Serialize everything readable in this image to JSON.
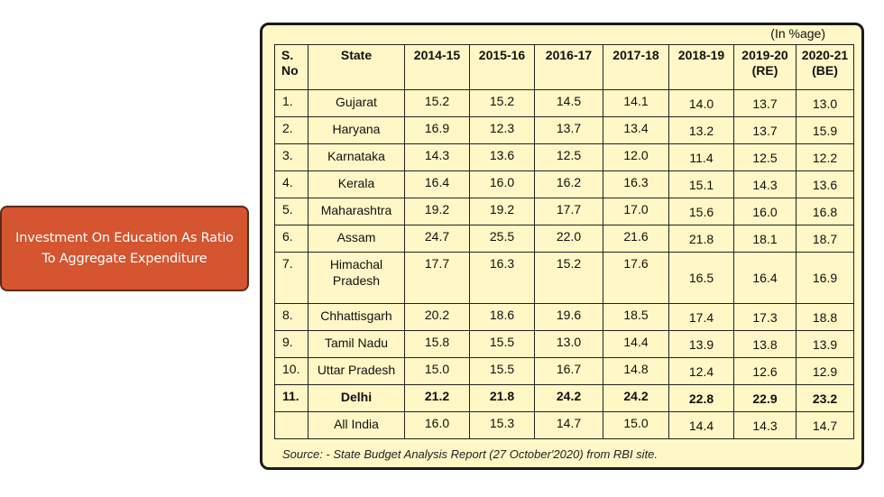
{
  "label": {
    "line1": "Investment On Education As Ratio",
    "line2": "To Aggregate Expenditure"
  },
  "table": {
    "unit_note": "(In %age)",
    "headers": {
      "sno_line1": "S.",
      "sno_line2": "No",
      "state": "State",
      "y1": "2014-15",
      "y2": "2015-16",
      "y3": "2016-17",
      "y4": "2017-18",
      "y5": "2018-19",
      "y6_line1": "2019-20",
      "y6_line2": "(RE)",
      "y7_line1": "2020-21",
      "y7_line2": "(BE)"
    },
    "rows": [
      {
        "sno": "1.",
        "state": "Gujarat",
        "v": [
          "15.2",
          "15.2",
          "14.5",
          "14.1",
          "14.0",
          "13.7",
          "13.0"
        ]
      },
      {
        "sno": "2.",
        "state": "Haryana",
        "v": [
          "16.9",
          "12.3",
          "13.7",
          "13.4",
          "13.2",
          "13.7",
          "15.9"
        ]
      },
      {
        "sno": "3.",
        "state": "Karnataka",
        "v": [
          "14.3",
          "13.6",
          "12.5",
          "12.0",
          "11.4",
          "12.5",
          "12.2"
        ]
      },
      {
        "sno": "4.",
        "state": "Kerala",
        "v": [
          "16.4",
          "16.0",
          "16.2",
          "16.3",
          "15.1",
          "14.3",
          "13.6"
        ]
      },
      {
        "sno": "5.",
        "state": "Maharashtra",
        "v": [
          "19.2",
          "19.2",
          "17.7",
          "17.0",
          "15.6",
          "16.0",
          "16.8"
        ]
      },
      {
        "sno": "6.",
        "state": "Assam",
        "v": [
          "24.7",
          "25.5",
          "22.0",
          "21.6",
          "21.8",
          "18.1",
          "18.7"
        ]
      },
      {
        "sno": "7.",
        "state_line1": "Himachal",
        "state_line2": "Pradesh",
        "v": [
          "17.7",
          "16.3",
          "15.2",
          "17.6",
          "16.5",
          "16.4",
          "16.9"
        ]
      },
      {
        "sno": "8.",
        "state": "Chhattisgarh",
        "v": [
          "20.2",
          "18.6",
          "19.6",
          "18.5",
          "17.4",
          "17.3",
          "18.8"
        ]
      },
      {
        "sno": "9.",
        "state": "Tamil Nadu",
        "v": [
          "15.8",
          "15.5",
          "13.0",
          "14.4",
          "13.9",
          "13.8",
          "13.9"
        ]
      },
      {
        "sno": "10.",
        "state": "Uttar Pradesh",
        "v": [
          "15.0",
          "15.5",
          "16.7",
          "14.8",
          "12.4",
          "12.6",
          "12.9"
        ]
      },
      {
        "sno": "11.",
        "state": "Delhi",
        "v": [
          "21.2",
          "21.8",
          "24.2",
          "24.2",
          "22.8",
          "22.9",
          "23.2"
        ]
      },
      {
        "sno": "",
        "state": "All India",
        "v": [
          "16.0",
          "15.3",
          "14.7",
          "15.0",
          "14.4",
          "14.3",
          "14.7"
        ]
      }
    ],
    "source": "Source: - State Budget Analysis Report (27 October'2020) from RBI site."
  }
}
